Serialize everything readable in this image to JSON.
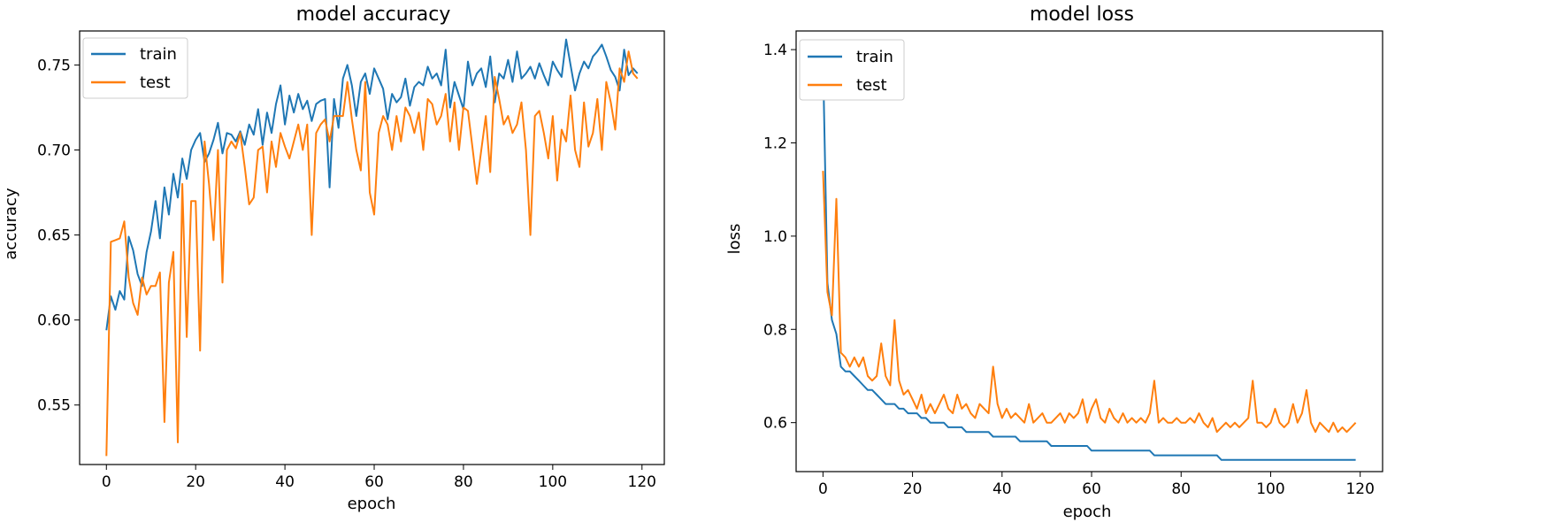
{
  "colors": {
    "train": "#1f77b4",
    "test": "#ff7f0e"
  },
  "chart_data": [
    {
      "type": "line",
      "title": "model accuracy",
      "xlabel": "epoch",
      "ylabel": "accuracy",
      "xlim": [
        -6,
        125
      ],
      "ylim": [
        0.515,
        0.77
      ],
      "xticks": [
        0,
        20,
        40,
        60,
        80,
        100,
        120
      ],
      "xtick_labels": [
        "0",
        "20",
        "40",
        "60",
        "80",
        "100",
        "120"
      ],
      "yticks": [
        0.55,
        0.6,
        0.65,
        0.7,
        0.75
      ],
      "ytick_labels": [
        "0.55",
        "0.60",
        "0.65",
        "0.70",
        "0.75"
      ],
      "legend": "upper-left",
      "grid": false,
      "series": [
        {
          "name": "train",
          "color": "#1f77b4",
          "values": [
            0.594,
            0.614,
            0.606,
            0.617,
            0.612,
            0.649,
            0.641,
            0.627,
            0.62,
            0.64,
            0.652,
            0.67,
            0.648,
            0.678,
            0.662,
            0.686,
            0.672,
            0.695,
            0.683,
            0.7,
            0.706,
            0.71,
            0.693,
            0.698,
            0.706,
            0.716,
            0.698,
            0.71,
            0.709,
            0.705,
            0.711,
            0.703,
            0.715,
            0.709,
            0.724,
            0.703,
            0.722,
            0.71,
            0.727,
            0.738,
            0.715,
            0.732,
            0.722,
            0.733,
            0.724,
            0.729,
            0.717,
            0.727,
            0.729,
            0.73,
            0.678,
            0.73,
            0.713,
            0.742,
            0.75,
            0.738,
            0.72,
            0.74,
            0.745,
            0.733,
            0.748,
            0.742,
            0.736,
            0.718,
            0.733,
            0.728,
            0.731,
            0.742,
            0.726,
            0.737,
            0.74,
            0.738,
            0.749,
            0.742,
            0.745,
            0.738,
            0.759,
            0.725,
            0.74,
            0.732,
            0.724,
            0.752,
            0.738,
            0.745,
            0.748,
            0.737,
            0.755,
            0.728,
            0.745,
            0.742,
            0.753,
            0.74,
            0.758,
            0.742,
            0.745,
            0.749,
            0.742,
            0.751,
            0.744,
            0.738,
            0.752,
            0.747,
            0.743,
            0.765,
            0.75,
            0.735,
            0.745,
            0.752,
            0.748,
            0.755,
            0.758,
            0.762,
            0.755,
            0.747,
            0.743,
            0.735,
            0.759,
            0.744,
            0.748,
            0.745
          ]
        },
        {
          "name": "test",
          "color": "#ff7f0e",
          "values": [
            0.52,
            0.646,
            0.647,
            0.648,
            0.658,
            0.625,
            0.61,
            0.603,
            0.625,
            0.615,
            0.62,
            0.62,
            0.628,
            0.54,
            0.622,
            0.64,
            0.528,
            0.68,
            0.59,
            0.67,
            0.67,
            0.582,
            0.705,
            0.68,
            0.647,
            0.7,
            0.622,
            0.7,
            0.705,
            0.701,
            0.71,
            0.69,
            0.668,
            0.672,
            0.7,
            0.702,
            0.675,
            0.705,
            0.69,
            0.71,
            0.702,
            0.695,
            0.705,
            0.715,
            0.7,
            0.715,
            0.65,
            0.71,
            0.715,
            0.718,
            0.705,
            0.72,
            0.72,
            0.72,
            0.74,
            0.718,
            0.7,
            0.688,
            0.74,
            0.675,
            0.662,
            0.71,
            0.72,
            0.715,
            0.7,
            0.72,
            0.705,
            0.725,
            0.72,
            0.71,
            0.722,
            0.7,
            0.73,
            0.727,
            0.715,
            0.72,
            0.733,
            0.705,
            0.728,
            0.7,
            0.725,
            0.723,
            0.702,
            0.68,
            0.7,
            0.72,
            0.687,
            0.743,
            0.73,
            0.715,
            0.72,
            0.71,
            0.715,
            0.728,
            0.7,
            0.65,
            0.72,
            0.723,
            0.71,
            0.695,
            0.72,
            0.682,
            0.712,
            0.705,
            0.732,
            0.7,
            0.69,
            0.728,
            0.702,
            0.71,
            0.73,
            0.7,
            0.74,
            0.728,
            0.712,
            0.748,
            0.74,
            0.758,
            0.745,
            0.742
          ]
        }
      ]
    },
    {
      "type": "line",
      "title": "model loss",
      "xlabel": "epoch",
      "ylabel": "loss",
      "xlim": [
        -6,
        125
      ],
      "ylim": [
        0.495,
        1.44
      ],
      "xticks": [
        0,
        20,
        40,
        60,
        80,
        100,
        120
      ],
      "xtick_labels": [
        "0",
        "20",
        "40",
        "60",
        "80",
        "100",
        "120"
      ],
      "yticks": [
        0.6,
        0.8,
        1.0,
        1.2,
        1.4
      ],
      "ytick_labels": [
        "0.6",
        "0.8",
        "1.0",
        "1.2",
        "1.4"
      ],
      "legend": "upper-left",
      "grid": false,
      "series": [
        {
          "name": "train",
          "color": "#1f77b4",
          "values": [
            1.38,
            0.9,
            0.82,
            0.79,
            0.72,
            0.71,
            0.71,
            0.7,
            0.69,
            0.68,
            0.67,
            0.67,
            0.66,
            0.65,
            0.64,
            0.64,
            0.64,
            0.63,
            0.63,
            0.62,
            0.62,
            0.62,
            0.61,
            0.61,
            0.6,
            0.6,
            0.6,
            0.6,
            0.59,
            0.59,
            0.59,
            0.59,
            0.58,
            0.58,
            0.58,
            0.58,
            0.58,
            0.58,
            0.57,
            0.57,
            0.57,
            0.57,
            0.57,
            0.57,
            0.56,
            0.56,
            0.56,
            0.56,
            0.56,
            0.56,
            0.56,
            0.55,
            0.55,
            0.55,
            0.55,
            0.55,
            0.55,
            0.55,
            0.55,
            0.55,
            0.54,
            0.54,
            0.54,
            0.54,
            0.54,
            0.54,
            0.54,
            0.54,
            0.54,
            0.54,
            0.54,
            0.54,
            0.54,
            0.54,
            0.53,
            0.53,
            0.53,
            0.53,
            0.53,
            0.53,
            0.53,
            0.53,
            0.53,
            0.53,
            0.53,
            0.53,
            0.53,
            0.53,
            0.53,
            0.52,
            0.52,
            0.52,
            0.52,
            0.52,
            0.52,
            0.52,
            0.52,
            0.52,
            0.52,
            0.52,
            0.52,
            0.52,
            0.52,
            0.52,
            0.52,
            0.52,
            0.52,
            0.52,
            0.52,
            0.52,
            0.52,
            0.52,
            0.52,
            0.52,
            0.52,
            0.52,
            0.52,
            0.52,
            0.52,
            0.52
          ]
        },
        {
          "name": "test",
          "color": "#ff7f0e",
          "values": [
            1.14,
            0.88,
            0.83,
            1.08,
            0.75,
            0.74,
            0.72,
            0.74,
            0.72,
            0.74,
            0.7,
            0.69,
            0.7,
            0.77,
            0.7,
            0.68,
            0.82,
            0.69,
            0.66,
            0.67,
            0.65,
            0.63,
            0.66,
            0.62,
            0.64,
            0.62,
            0.64,
            0.66,
            0.63,
            0.62,
            0.66,
            0.63,
            0.64,
            0.62,
            0.61,
            0.64,
            0.63,
            0.62,
            0.72,
            0.64,
            0.61,
            0.63,
            0.61,
            0.62,
            0.61,
            0.6,
            0.64,
            0.6,
            0.61,
            0.62,
            0.6,
            0.6,
            0.61,
            0.62,
            0.6,
            0.62,
            0.61,
            0.62,
            0.65,
            0.6,
            0.63,
            0.65,
            0.61,
            0.6,
            0.63,
            0.61,
            0.6,
            0.62,
            0.6,
            0.61,
            0.6,
            0.61,
            0.6,
            0.62,
            0.69,
            0.6,
            0.61,
            0.6,
            0.6,
            0.61,
            0.6,
            0.6,
            0.61,
            0.6,
            0.62,
            0.6,
            0.59,
            0.61,
            0.58,
            0.59,
            0.6,
            0.59,
            0.6,
            0.59,
            0.6,
            0.61,
            0.69,
            0.6,
            0.6,
            0.59,
            0.6,
            0.63,
            0.6,
            0.59,
            0.6,
            0.64,
            0.6,
            0.62,
            0.67,
            0.6,
            0.58,
            0.6,
            0.59,
            0.58,
            0.6,
            0.58,
            0.59,
            0.58,
            0.59,
            0.6
          ]
        }
      ]
    }
  ]
}
